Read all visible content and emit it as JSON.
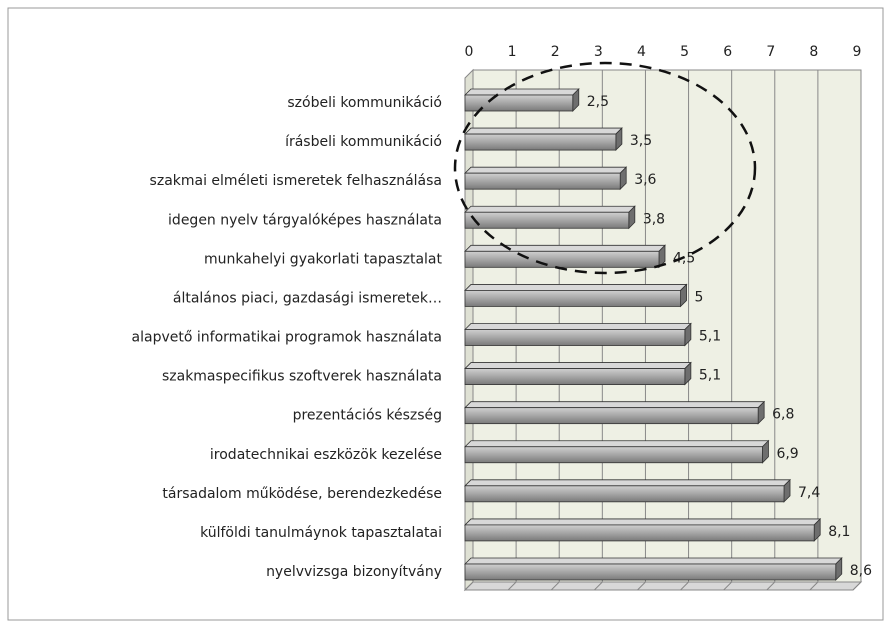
{
  "chart_data": {
    "type": "bar",
    "orientation": "horizontal",
    "categories": [
      "szóbeli kommunikáció",
      "írásbeli kommunikáció",
      "szakmai elméleti ismeretek felhasználása",
      "idegen nyelv tárgyalóképes használata",
      "munkahelyi gyakorlati tapasztalat",
      "általános piaci, gazdasági ismeretek…",
      "alapvető informatikai programok használata",
      "szakmaspecifikus szoftverek használata",
      "prezentációs készség",
      "irodatechnikai eszközök kezelése",
      "társadalom működése, berendezkedése",
      "külföldi tanulmáynok tapasztalatai",
      "nyelvvizsga bizonyítvány"
    ],
    "values": [
      2.5,
      3.5,
      3.6,
      3.8,
      4.5,
      5,
      5.1,
      5.1,
      6.8,
      6.9,
      7.4,
      8.1,
      8.6
    ],
    "value_labels": [
      "2,5",
      "3,5",
      "3,6",
      "3,8",
      "4,5",
      "5",
      "5,1",
      "5,1",
      "6,8",
      "6,9",
      "7,4",
      "8,1",
      "8,6"
    ],
    "color": "#a6a6a6",
    "xlim": [
      0,
      9
    ],
    "xticks": [
      0,
      1,
      2,
      3,
      4,
      5,
      6,
      7,
      8,
      9
    ],
    "grid": true
  }
}
